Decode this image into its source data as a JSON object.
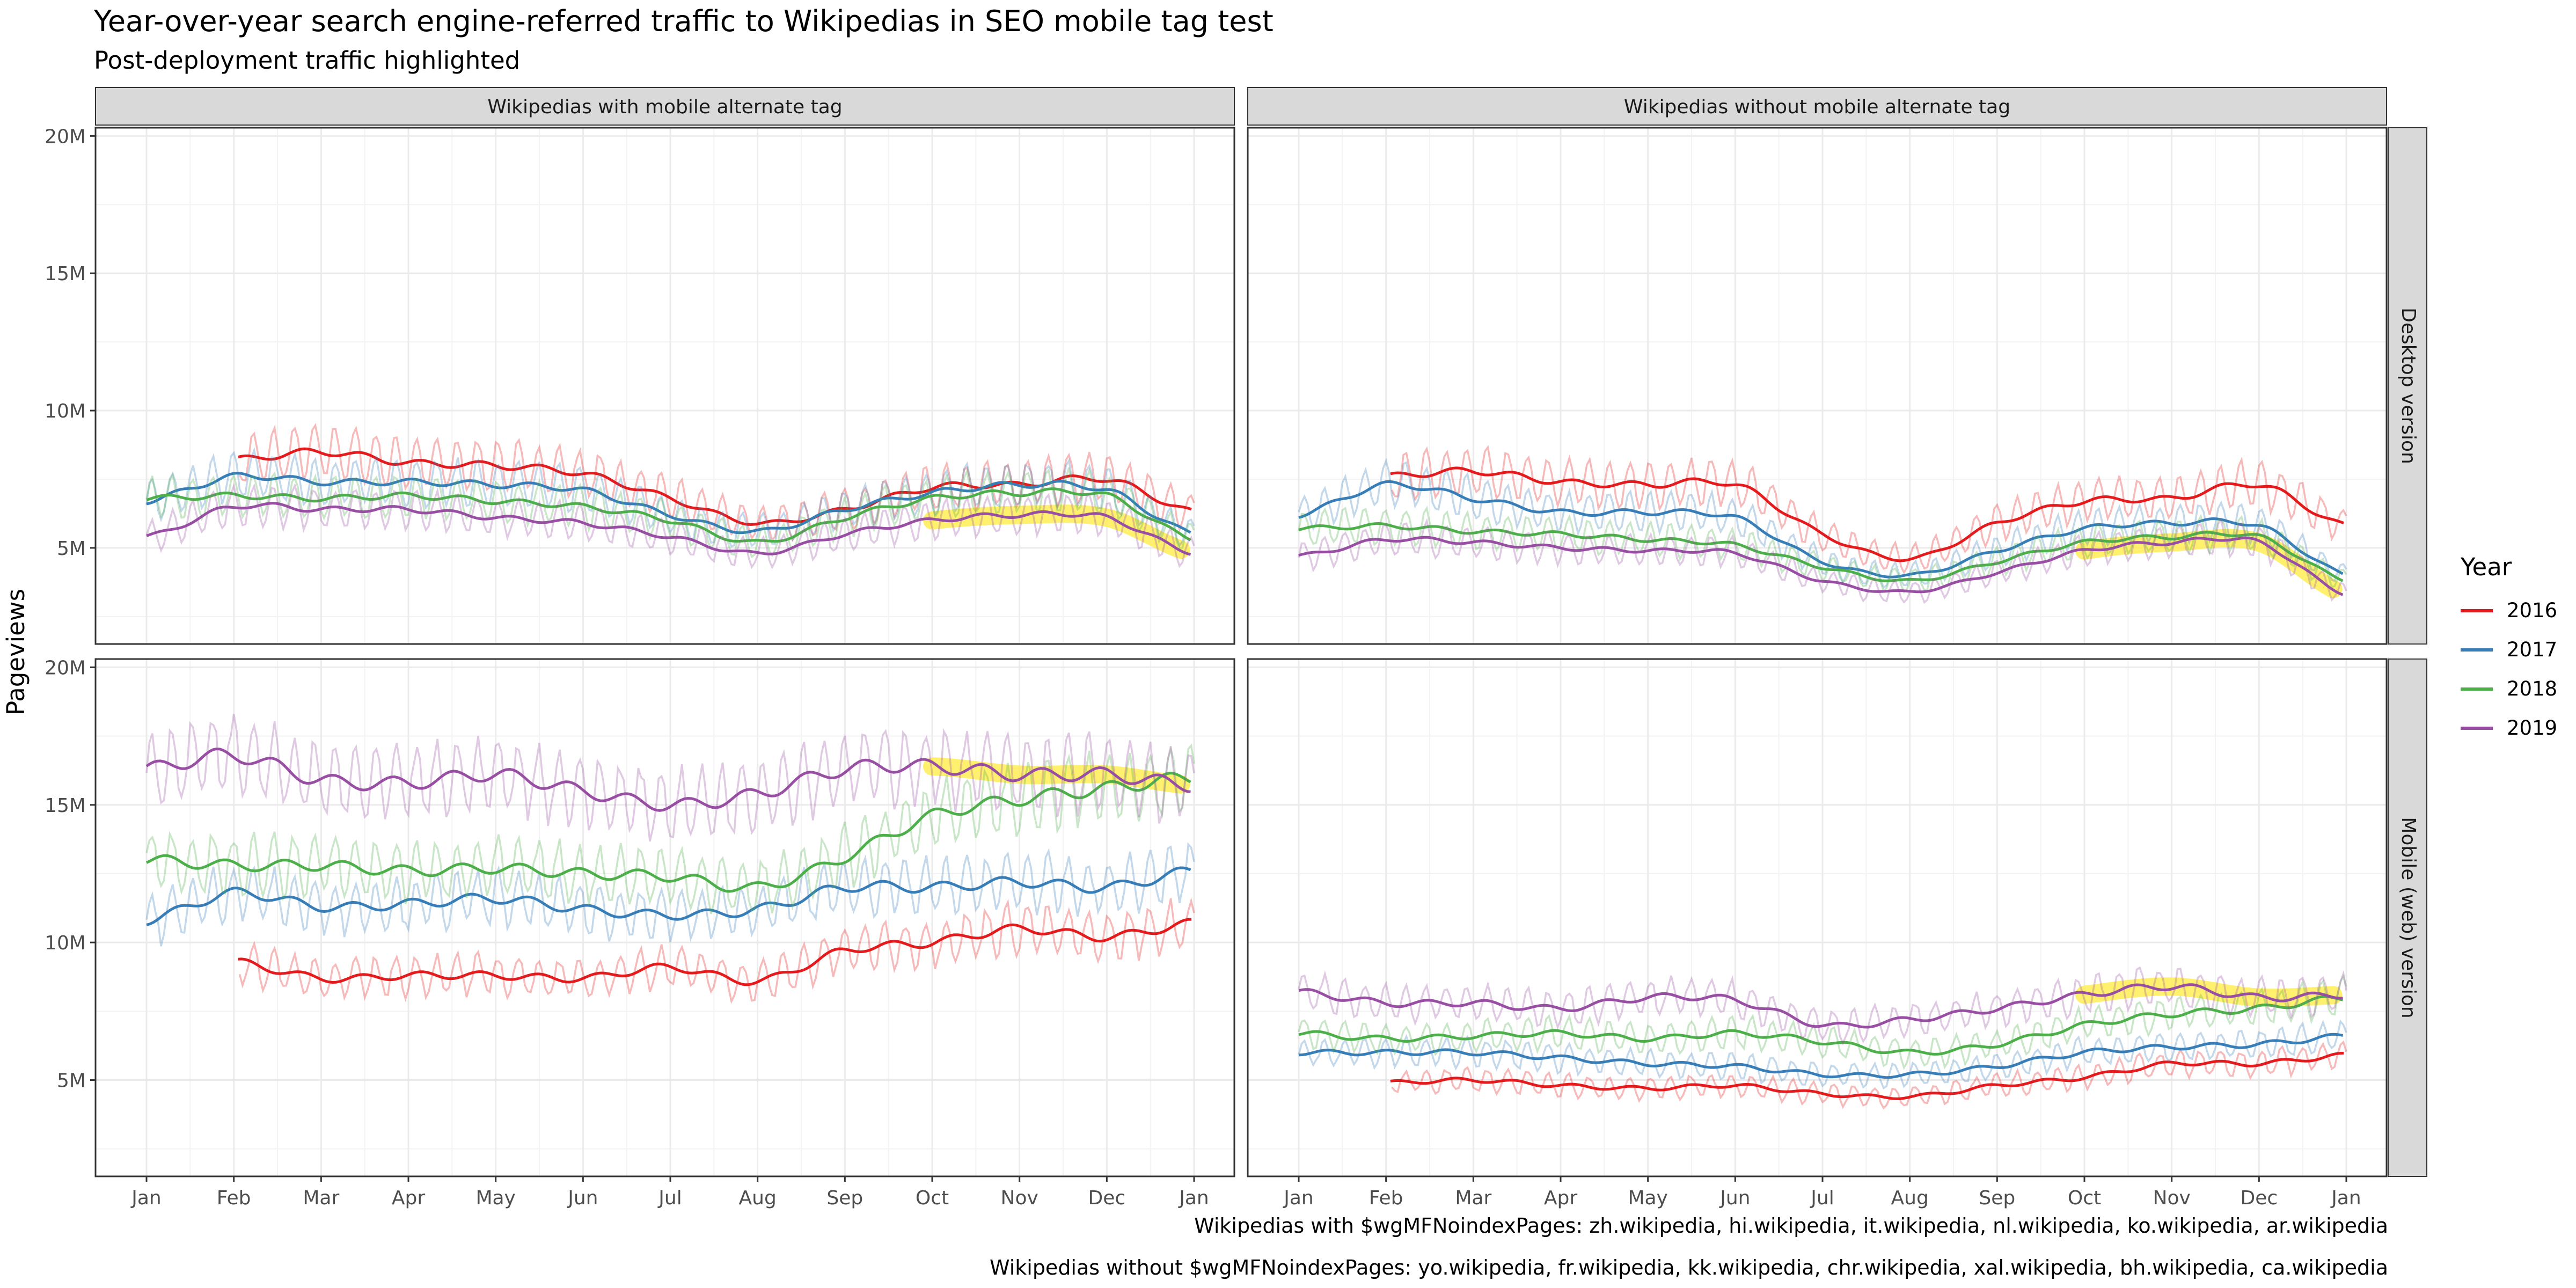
{
  "title": "Year-over-year search engine-referred traffic to Wikipedias in SEO mobile tag test",
  "subtitle": "Post-deployment traffic highlighted",
  "captions": [
    "Wikipedias with $wgMFNoindexPages: zh.wikipedia, hi.wikipedia, it.wikipedia, nl.wikipedia, ko.wikipedia, ar.wikipedia",
    "Wikipedias without $wgMFNoindexPages: yo.wikipedia, fr.wikipedia, kk.wikipedia, chr.wikipedia, xal.wikipedia, bh.wikipedia, ca.wikipedia"
  ],
  "colors": {
    "2016": "#e41a1c",
    "2017": "#377eb8",
    "2018": "#4daf4a",
    "2019": "#984ea3",
    "highlight": "#ffee55",
    "strip": "#d9d9d9",
    "grid": "#ebebeb"
  },
  "chart_data": {
    "type": "line",
    "xlabel": "",
    "ylabel": "Pageviews",
    "x_ticks": [
      "Jan",
      "Feb",
      "Mar",
      "Apr",
      "May",
      "Jun",
      "Jul",
      "Aug",
      "Sep",
      "Oct",
      "Nov",
      "Dec",
      "Jan"
    ],
    "y_ticks": [
      "5M",
      "10M",
      "15M",
      "20M"
    ],
    "ylim": [
      0,
      20000000
    ],
    "legend": {
      "title": "Year",
      "entries": [
        "2016",
        "2017",
        "2018",
        "2019"
      ],
      "position": "right"
    },
    "grid": true,
    "highlight": "post-deployment period (Oct–Dec 2019) highlighted in yellow",
    "col_facets": [
      "Wikipedias with mobile alternate tag",
      "Wikipedias without mobile alternate tag"
    ],
    "row_facets": [
      "Desktop version",
      "Mobile (web) version"
    ],
    "x_months": [
      "Jan",
      "Feb",
      "Mar",
      "Apr",
      "May",
      "Jun",
      "Jul",
      "Aug",
      "Sep",
      "Oct",
      "Nov",
      "Dec",
      "Jan"
    ],
    "panels": [
      {
        "col": 0,
        "row": 0,
        "series": [
          {
            "name": "2016",
            "start_month": 1,
            "values_M": [
              null,
              8.2,
              8.5,
              8.1,
              8.0,
              7.7,
              6.8,
              5.9,
              6.4,
              7.2,
              7.3,
              7.5,
              6.3
            ]
          },
          {
            "name": "2017",
            "values_M": [
              6.7,
              7.6,
              7.4,
              7.4,
              7.3,
              7.1,
              6.2,
              5.6,
              6.4,
              7.0,
              7.3,
              7.1,
              5.5
            ]
          },
          {
            "name": "2018",
            "values_M": [
              6.8,
              6.9,
              6.8,
              6.9,
              6.7,
              6.5,
              6.0,
              5.2,
              6.1,
              6.8,
              7.0,
              6.9,
              5.3
            ]
          },
          {
            "name": "2019",
            "values_M": [
              5.4,
              6.5,
              6.4,
              6.4,
              6.1,
              5.9,
              5.4,
              4.8,
              5.5,
              6.0,
              6.2,
              6.1,
              4.8
            ]
          }
        ]
      },
      {
        "col": 1,
        "row": 0,
        "series": [
          {
            "name": "2016",
            "start_month": 1,
            "values_M": [
              null,
              7.6,
              7.8,
              7.4,
              7.3,
              7.3,
              5.5,
              4.6,
              5.9,
              6.7,
              6.8,
              7.3,
              5.8
            ]
          },
          {
            "name": "2017",
            "values_M": [
              6.2,
              7.3,
              6.8,
              6.3,
              6.3,
              6.1,
              4.5,
              4.0,
              4.9,
              5.7,
              5.9,
              5.8,
              4.0
            ]
          },
          {
            "name": "2018",
            "values_M": [
              5.7,
              5.8,
              5.6,
              5.5,
              5.3,
              5.1,
              4.3,
              3.8,
              4.5,
              5.2,
              5.4,
              5.4,
              3.8
            ]
          },
          {
            "name": "2019",
            "values_M": [
              4.7,
              5.3,
              5.2,
              5.0,
              4.9,
              4.8,
              3.8,
              3.4,
              4.1,
              4.9,
              5.2,
              5.2,
              3.3
            ]
          }
        ]
      },
      {
        "col": 0,
        "row": 1,
        "series": [
          {
            "name": "2016",
            "start_month": 1,
            "values_M": [
              null,
              9.3,
              8.7,
              8.8,
              8.8,
              8.7,
              9.1,
              8.6,
              9.7,
              10.0,
              10.5,
              10.2,
              10.7
            ]
          },
          {
            "name": "2017",
            "values_M": [
              10.8,
              11.8,
              11.3,
              11.4,
              11.6,
              11.2,
              11.0,
              11.2,
              12.0,
              12.0,
              12.2,
              12.0,
              12.6
            ]
          },
          {
            "name": "2018",
            "values_M": [
              13.0,
              12.8,
              12.8,
              12.6,
              12.7,
              12.5,
              12.4,
              12.0,
              13.1,
              14.6,
              15.2,
              15.6,
              16.0
            ]
          },
          {
            "name": "2019",
            "values_M": [
              16.3,
              16.8,
              15.9,
              15.8,
              16.1,
              15.5,
              15.0,
              15.4,
              16.3,
              16.4,
              16.1,
              16.1,
              15.7
            ]
          }
        ]
      },
      {
        "col": 1,
        "row": 1,
        "series": [
          {
            "name": "2016",
            "start_month": 1,
            "values_M": [
              null,
              4.9,
              5.0,
              4.8,
              4.7,
              4.8,
              4.5,
              4.4,
              4.8,
              5.1,
              5.6,
              5.6,
              5.9
            ]
          },
          {
            "name": "2017",
            "values_M": [
              6.0,
              6.0,
              6.0,
              5.8,
              5.6,
              5.5,
              5.2,
              5.2,
              5.5,
              6.0,
              6.2,
              6.3,
              6.6
            ]
          },
          {
            "name": "2018",
            "values_M": [
              6.7,
              6.5,
              6.6,
              6.7,
              6.5,
              6.7,
              6.4,
              6.0,
              6.3,
              7.0,
              7.4,
              7.6,
              8.0
            ]
          },
          {
            "name": "2019",
            "values_M": [
              8.2,
              7.8,
              7.8,
              7.6,
              8.0,
              7.9,
              7.0,
              7.2,
              7.6,
              8.1,
              8.4,
              8.0,
              8.1
            ]
          }
        ]
      }
    ]
  }
}
